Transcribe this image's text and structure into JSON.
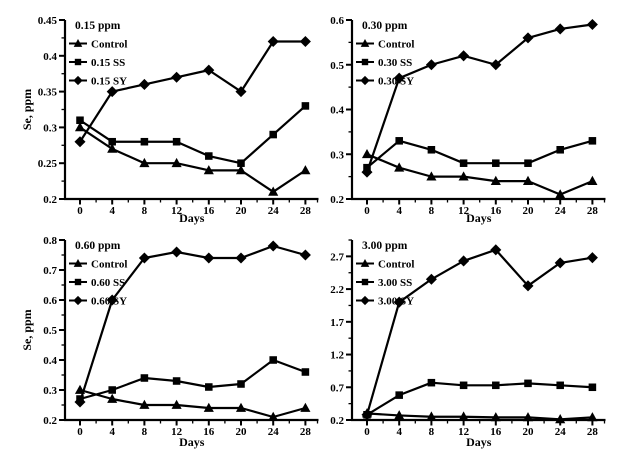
{
  "figure": {
    "description": "Selenium accumulation over time at four supplementation levels",
    "colors": {
      "foreground": "#000000",
      "background": "#ffffff"
    }
  },
  "chart_data": [
    {
      "type": "line",
      "title": "0.15 ppm",
      "xlabel": "Days",
      "ylabel": "Se, ppm",
      "x": [
        0,
        4,
        8,
        12,
        16,
        20,
        24,
        28
      ],
      "xtick_labels": [
        "0",
        "4",
        "8",
        "12",
        "16",
        "20",
        "24",
        "28"
      ],
      "ylim": [
        0.2,
        0.45
      ],
      "yticks": [
        0.2,
        0.25,
        0.3,
        0.35,
        0.4,
        0.45
      ],
      "ytick_labels": [
        "0.2",
        "0.25",
        "0.3",
        "0.35",
        "0.4",
        "0.45"
      ],
      "grid": false,
      "legend_position": "top-left",
      "series": [
        {
          "name": "Control",
          "marker": "triangle",
          "values": [
            0.3,
            0.27,
            0.25,
            0.25,
            0.24,
            0.24,
            0.21,
            0.24
          ]
        },
        {
          "name": "0.15 SS",
          "marker": "square",
          "values": [
            0.31,
            0.28,
            0.28,
            0.28,
            0.26,
            0.25,
            0.29,
            0.33
          ]
        },
        {
          "name": "0.15 SY",
          "marker": "diamond",
          "values": [
            0.28,
            0.35,
            0.36,
            0.37,
            0.38,
            0.35,
            0.42,
            0.42
          ]
        }
      ]
    },
    {
      "type": "line",
      "title": "0.30 ppm",
      "xlabel": "Days",
      "ylabel": "",
      "x": [
        0,
        4,
        8,
        12,
        16,
        20,
        24,
        28
      ],
      "xtick_labels": [
        "0",
        "4",
        "8",
        "12",
        "16",
        "20",
        "24",
        "28"
      ],
      "ylim": [
        0.2,
        0.6
      ],
      "yticks": [
        0.2,
        0.3,
        0.4,
        0.5,
        0.6
      ],
      "ytick_labels": [
        "0.2",
        "0.3",
        "0.4",
        "0.5",
        "0.6"
      ],
      "grid": false,
      "legend_position": "top-left",
      "series": [
        {
          "name": "Control",
          "marker": "triangle",
          "values": [
            0.3,
            0.27,
            0.25,
            0.25,
            0.24,
            0.24,
            0.21,
            0.24
          ]
        },
        {
          "name": "0.30 SS",
          "marker": "square",
          "values": [
            0.27,
            0.33,
            0.31,
            0.28,
            0.28,
            0.28,
            0.31,
            0.33
          ]
        },
        {
          "name": "0.30 SY",
          "marker": "diamond",
          "values": [
            0.26,
            0.47,
            0.5,
            0.52,
            0.5,
            0.56,
            0.58,
            0.59
          ]
        }
      ]
    },
    {
      "type": "line",
      "title": "0.60 ppm",
      "xlabel": "Days",
      "ylabel": "Se, ppm",
      "x": [
        0,
        4,
        8,
        12,
        16,
        20,
        24,
        28
      ],
      "xtick_labels": [
        "0",
        "4",
        "8",
        "12",
        "16",
        "20",
        "24",
        "28"
      ],
      "ylim": [
        0.2,
        0.8
      ],
      "yticks": [
        0.2,
        0.3,
        0.4,
        0.5,
        0.6,
        0.7,
        0.8
      ],
      "ytick_labels": [
        "0.2",
        "0.3",
        "0.4",
        "0.5",
        "0.6",
        "0.7",
        "0.8"
      ],
      "grid": false,
      "legend_position": "top-left",
      "series": [
        {
          "name": "Control",
          "marker": "triangle",
          "values": [
            0.3,
            0.27,
            0.25,
            0.25,
            0.24,
            0.24,
            0.21,
            0.24
          ]
        },
        {
          "name": "0.60 SS",
          "marker": "square",
          "values": [
            0.27,
            0.3,
            0.34,
            0.33,
            0.31,
            0.32,
            0.4,
            0.36
          ]
        },
        {
          "name": "0.60 SY",
          "marker": "diamond",
          "values": [
            0.26,
            0.6,
            0.74,
            0.76,
            0.74,
            0.74,
            0.78,
            0.75
          ]
        }
      ]
    },
    {
      "type": "line",
      "title": "3.00 ppm",
      "xlabel": "Days",
      "ylabel": "",
      "x": [
        0,
        4,
        8,
        12,
        16,
        20,
        24,
        28
      ],
      "xtick_labels": [
        "0",
        "4",
        "8",
        "12",
        "16",
        "20",
        "24",
        "28"
      ],
      "ylim": [
        0.2,
        2.95
      ],
      "yticks": [
        0.2,
        0.7,
        1.2,
        1.7,
        2.2,
        2.7
      ],
      "ytick_labels": [
        "0.2",
        "0.7",
        "1.2",
        "1.7",
        "2.2",
        "2.7"
      ],
      "grid": false,
      "legend_position": "top-left",
      "series": [
        {
          "name": "Control",
          "marker": "triangle",
          "values": [
            0.3,
            0.27,
            0.25,
            0.25,
            0.24,
            0.24,
            0.21,
            0.24
          ]
        },
        {
          "name": "3.00 SS",
          "marker": "square",
          "values": [
            0.28,
            0.58,
            0.77,
            0.73,
            0.73,
            0.76,
            0.73,
            0.7
          ]
        },
        {
          "name": "3.00 SY",
          "marker": "diamond",
          "values": [
            0.28,
            2.0,
            2.35,
            2.63,
            2.8,
            2.25,
            2.6,
            2.68
          ]
        }
      ]
    }
  ]
}
